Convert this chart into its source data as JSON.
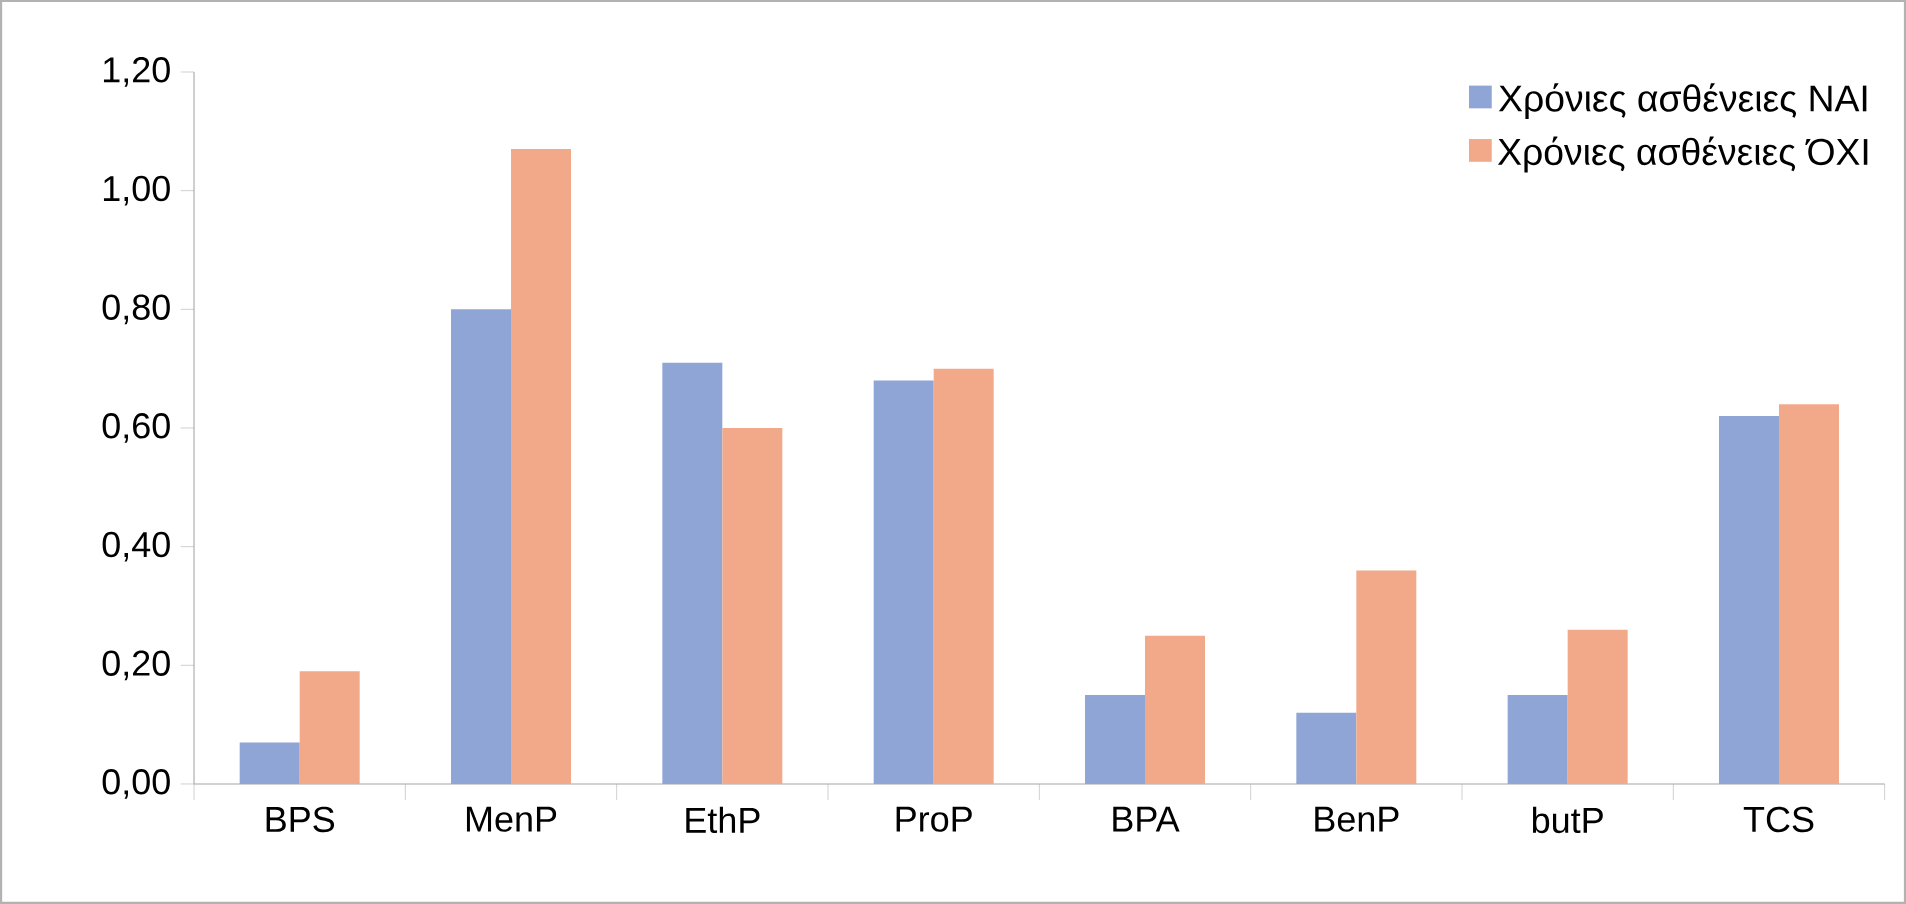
{
  "chart_data": {
    "type": "bar",
    "categories": [
      "BPS",
      "MenP",
      "EthP",
      "ProP",
      "BPA",
      "BenP",
      "butP",
      "TCS"
    ],
    "series": [
      {
        "name": "Χρόνιες ασθένειες ΝΑΙ",
        "color": "#8fa5d6",
        "values": [
          0.07,
          0.8,
          0.71,
          0.68,
          0.15,
          0.12,
          0.15,
          0.62
        ]
      },
      {
        "name": "Χρόνιες ασθένειες ΌΧΙ",
        "color": "#f2a98a",
        "values": [
          0.19,
          1.07,
          0.6,
          0.7,
          0.25,
          0.36,
          0.26,
          0.64
        ]
      }
    ],
    "ylim": [
      0,
      1.2
    ],
    "yticks": [
      {
        "value": 0,
        "label": "0,00"
      },
      {
        "value": 0.2,
        "label": "0,20"
      },
      {
        "value": 0.4,
        "label": "0,40"
      },
      {
        "value": 0.6,
        "label": "0,60"
      },
      {
        "value": 0.8,
        "label": "0,80"
      },
      {
        "value": 1.0,
        "label": "1,00"
      },
      {
        "value": 1.2,
        "label": "1,20"
      }
    ],
    "legend": "top right"
  }
}
